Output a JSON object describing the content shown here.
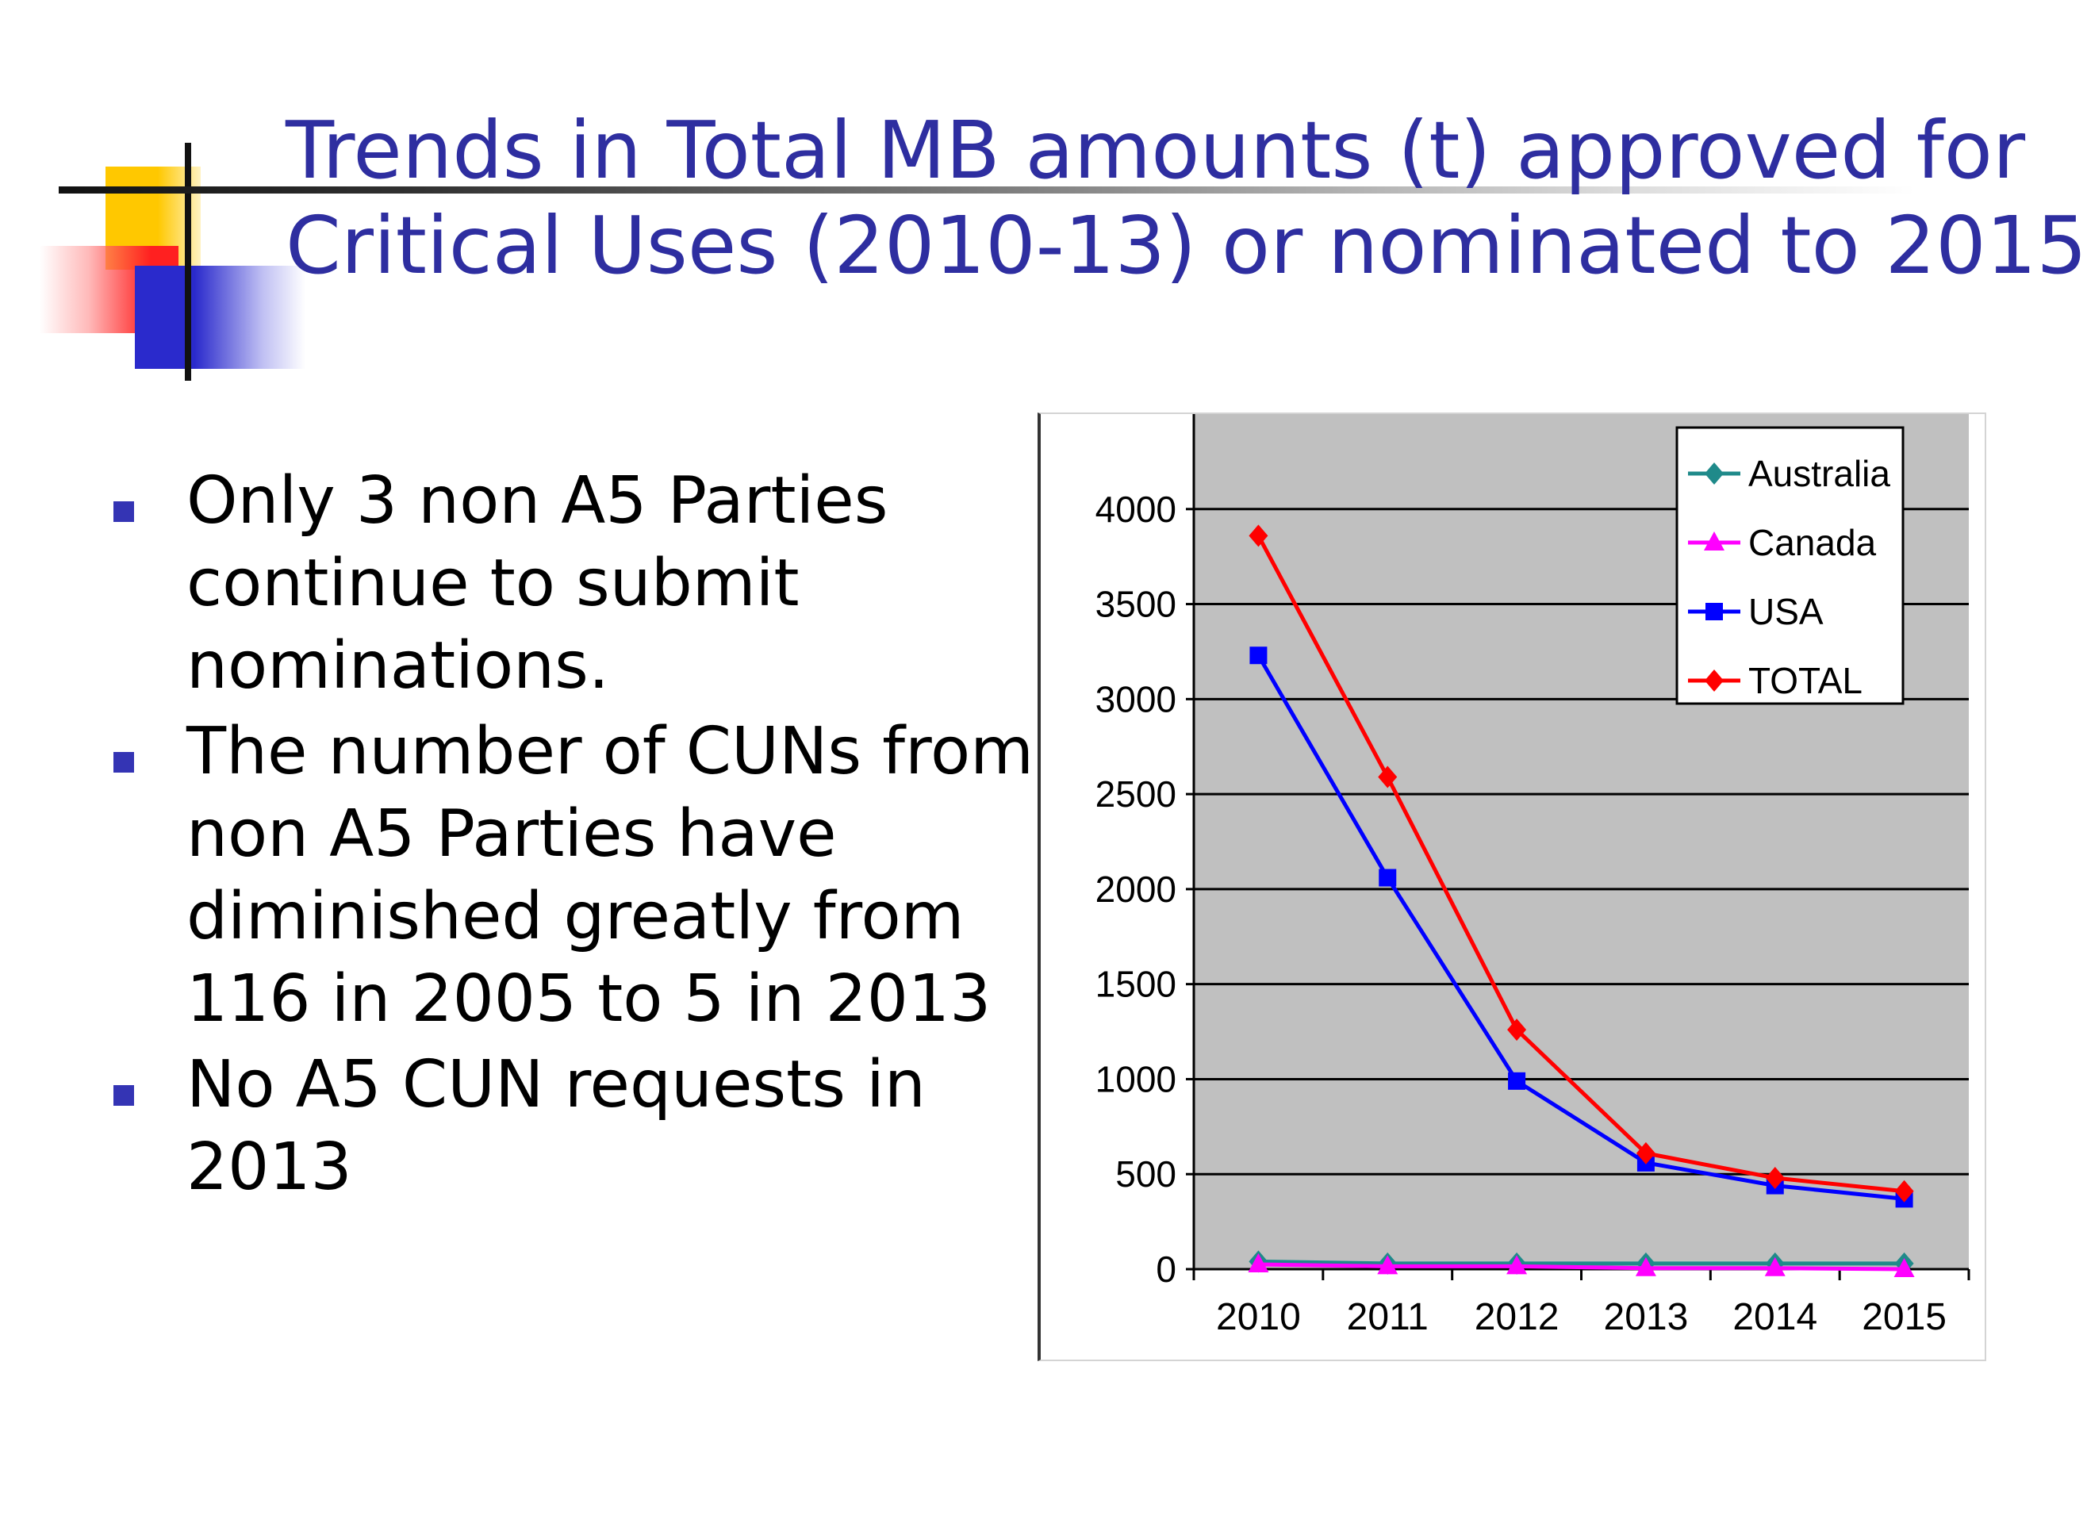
{
  "slide": {
    "title_line1": "Trends in Total MB amounts (t) approved for",
    "title_line2": "Critical Uses (2010-13) or nominated to 2015",
    "accent_color": "#2e2ea0",
    "bullet_color": "#3434b4",
    "bullets": [
      "Only 3 non A5 Parties continue to submit nominations.",
      "The number of CUNs from non A5 Parties have diminished greatly from 116 in 2005 to 5 in 2013",
      "No A5 CUN requests in 2013"
    ]
  },
  "chart_data": {
    "type": "line",
    "categories": [
      "2010",
      "2011",
      "2012",
      "2013",
      "2014",
      "2015"
    ],
    "ylim": [
      0,
      4500
    ],
    "yticks": [
      0,
      500,
      1000,
      1500,
      2000,
      2500,
      3000,
      3500,
      4000
    ],
    "ytick_labels": [
      "0",
      "500",
      "1000",
      "1500",
      "2000",
      "2500",
      "3000",
      "3500",
      "4000"
    ],
    "grid": true,
    "plot_background": "#c0c0c0",
    "legend_position": "top-right",
    "series": [
      {
        "name": "Australia",
        "color": "#1f8a8a",
        "marker": "diamond",
        "values": [
          40,
          30,
          30,
          30,
          30,
          30
        ]
      },
      {
        "name": "Canada",
        "color": "#ff00ff",
        "marker": "triangle",
        "values": [
          25,
          15,
          15,
          5,
          5,
          0
        ]
      },
      {
        "name": "USA",
        "color": "#0000ff",
        "marker": "square",
        "values": [
          3230,
          2060,
          990,
          560,
          440,
          370
        ]
      },
      {
        "name": "TOTAL",
        "color": "#ff0000",
        "marker": "diamond",
        "values": [
          3860,
          2590,
          1260,
          610,
          480,
          410
        ]
      }
    ]
  }
}
